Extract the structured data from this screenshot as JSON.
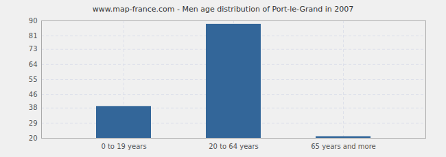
{
  "chart_data": {
    "type": "bar",
    "title": "www.map-france.com - Men age distribution of Port-le-Grand in 2007",
    "categories": [
      "0 to 19 years",
      "20 to 64 years",
      "65 years and more"
    ],
    "values": [
      39,
      88,
      21
    ],
    "color": "#336699",
    "ylim": [
      20,
      90
    ],
    "yticks": [
      20,
      29,
      38,
      46,
      55,
      64,
      73,
      81,
      90
    ],
    "grid": true
  }
}
